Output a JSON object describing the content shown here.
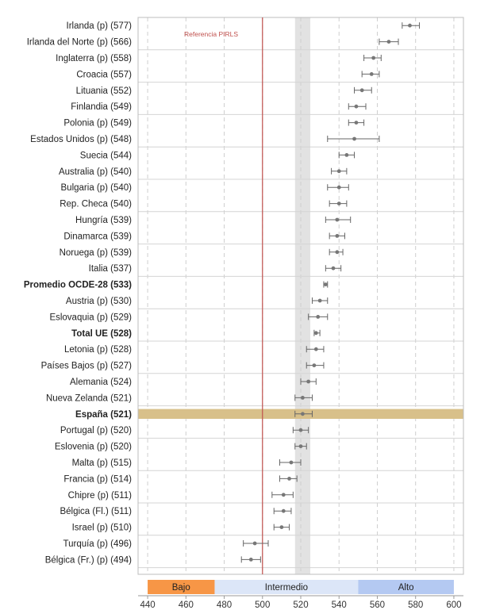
{
  "chart_data": {
    "type": "scatter",
    "subtype": "dot-with-error-bars",
    "xlim": [
      435,
      605
    ],
    "x_ticks": [
      440,
      460,
      480,
      500,
      520,
      540,
      560,
      580,
      600
    ],
    "grid": "vertical dashed",
    "reference_line": {
      "label": "Referencia PIRLS",
      "value": 500,
      "color": "#c0504d"
    },
    "shaded_interval": [
      517,
      525
    ],
    "highlight_row": "España (521)",
    "bands": [
      {
        "label": "Bajo",
        "from": 440,
        "to": 475,
        "color": "#f79646"
      },
      {
        "label": "Intermedio",
        "from": 475,
        "to": 550,
        "color": "#dce6f8"
      },
      {
        "label": "Alto",
        "from": 550,
        "to": 600,
        "color": "#b4c9f2"
      }
    ],
    "colors": {
      "point": "#777777",
      "highlight": "#d8c08a",
      "ref": "#c0504d",
      "shade": "#e2e2e2"
    },
    "rows": [
      {
        "label": "Irlanda (p) (577)",
        "value": 577,
        "low": 573,
        "high": 582,
        "bold": false
      },
      {
        "label": "Irlanda del Norte (p) (566)",
        "value": 566,
        "low": 561,
        "high": 571,
        "bold": false
      },
      {
        "label": "Inglaterra (p) (558)",
        "value": 558,
        "low": 553,
        "high": 562,
        "bold": false
      },
      {
        "label": "Croacia (557)",
        "value": 557,
        "low": 552,
        "high": 561,
        "bold": false
      },
      {
        "label": "Lituania (552)",
        "value": 552,
        "low": 548,
        "high": 557,
        "bold": false
      },
      {
        "label": "Finlandia (549)",
        "value": 549,
        "low": 545,
        "high": 554,
        "bold": false
      },
      {
        "label": "Polonia (p) (549)",
        "value": 549,
        "low": 545,
        "high": 553,
        "bold": false
      },
      {
        "label": "Estados Unidos (p) (548)",
        "value": 548,
        "low": 534,
        "high": 561,
        "bold": false
      },
      {
        "label": "Suecia (544)",
        "value": 544,
        "low": 540,
        "high": 548,
        "bold": false
      },
      {
        "label": "Australia (p) (540)",
        "value": 540,
        "low": 536,
        "high": 544,
        "bold": false
      },
      {
        "label": "Bulgaria (p) (540)",
        "value": 540,
        "low": 534,
        "high": 545,
        "bold": false
      },
      {
        "label": "Rep. Checa (540)",
        "value": 540,
        "low": 535,
        "high": 544,
        "bold": false
      },
      {
        "label": "Hungría (539)",
        "value": 539,
        "low": 533,
        "high": 546,
        "bold": false
      },
      {
        "label": "Dinamarca (539)",
        "value": 539,
        "low": 535,
        "high": 543,
        "bold": false
      },
      {
        "label": "Noruega (p) (539)",
        "value": 539,
        "low": 535,
        "high": 542,
        "bold": false
      },
      {
        "label": "Italia (537)",
        "value": 537,
        "low": 533,
        "high": 541,
        "bold": false
      },
      {
        "label": "Promedio OCDE-28 (533)",
        "value": 533,
        "low": 532,
        "high": 534,
        "bold": true
      },
      {
        "label": "Austria (p) (530)",
        "value": 530,
        "low": 526,
        "high": 534,
        "bold": false
      },
      {
        "label": "Eslovaquia (p) (529)",
        "value": 529,
        "low": 524,
        "high": 534,
        "bold": false
      },
      {
        "label": "Total UE (528)",
        "value": 528,
        "low": 527,
        "high": 530,
        "bold": true
      },
      {
        "label": "Letonia (p) (528)",
        "value": 528,
        "low": 523,
        "high": 532,
        "bold": false
      },
      {
        "label": "Países Bajos (p) (527)",
        "value": 527,
        "low": 523,
        "high": 532,
        "bold": false
      },
      {
        "label": "Alemania (524)",
        "value": 524,
        "low": 520,
        "high": 528,
        "bold": false
      },
      {
        "label": "Nueva Zelanda (521)",
        "value": 521,
        "low": 517,
        "high": 526,
        "bold": false
      },
      {
        "label": "España (521)",
        "value": 521,
        "low": 517,
        "high": 526,
        "bold": true
      },
      {
        "label": "Portugal (p) (520)",
        "value": 520,
        "low": 516,
        "high": 524,
        "bold": false
      },
      {
        "label": "Eslovenia (p) (520)",
        "value": 520,
        "low": 517,
        "high": 523,
        "bold": false
      },
      {
        "label": "Malta (p) (515)",
        "value": 515,
        "low": 509,
        "high": 520,
        "bold": false
      },
      {
        "label": "Francia (p) (514)",
        "value": 514,
        "low": 509,
        "high": 518,
        "bold": false
      },
      {
        "label": "Chipre (p) (511)",
        "value": 511,
        "low": 505,
        "high": 516,
        "bold": false
      },
      {
        "label": "Bélgica (Fl.) (511)",
        "value": 511,
        "low": 506,
        "high": 515,
        "bold": false
      },
      {
        "label": "Israel (p) (510)",
        "value": 510,
        "low": 506,
        "high": 514,
        "bold": false
      },
      {
        "label": "Turquía (p) (496)",
        "value": 496,
        "low": 490,
        "high": 503,
        "bold": false
      },
      {
        "label": "Bélgica (Fr.) (p) (494)",
        "value": 494,
        "low": 489,
        "high": 499,
        "bold": false
      }
    ]
  }
}
